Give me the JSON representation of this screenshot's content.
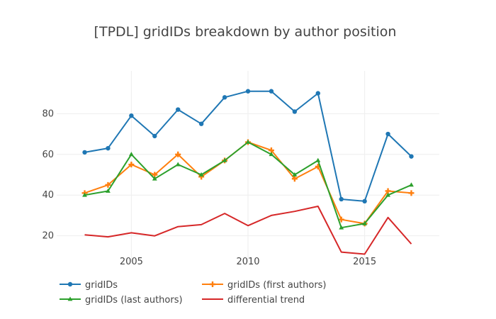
{
  "chart_data": {
    "type": "line",
    "title": "[TPDL] gridIDs breakdown by author position",
    "x": [
      2003,
      2004,
      2005,
      2006,
      2007,
      2008,
      2009,
      2010,
      2011,
      2012,
      2013,
      2014,
      2015,
      2016,
      2017
    ],
    "xticks": [
      2005,
      2010,
      2015
    ],
    "yticks": [
      20,
      40,
      60,
      80
    ],
    "xlim": [
      2001.8,
      2018.2
    ],
    "ylim": [
      7,
      101
    ],
    "grid": true,
    "legend_position": "bottom-left",
    "series": [
      {
        "name": "gridIDs",
        "color": "#1f77b4",
        "marker": "circle",
        "values": [
          61,
          63,
          79,
          69,
          82,
          75,
          88,
          91,
          91,
          81,
          90,
          38,
          37,
          70,
          59
        ]
      },
      {
        "name": "gridIDs (first authors)",
        "color": "#ff7f0e",
        "marker": "cross",
        "values": [
          41,
          45,
          55,
          50,
          60,
          49,
          57,
          66,
          62,
          48,
          54,
          28,
          26,
          42,
          41
        ]
      },
      {
        "name": "gridIDs (last authors)",
        "color": "#2ca02c",
        "marker": "triangle-up",
        "values": [
          40,
          42,
          60,
          48,
          55,
          50,
          57,
          66,
          60,
          50,
          57,
          24,
          26,
          40,
          45
        ]
      },
      {
        "name": "differential trend",
        "color": "#d62728",
        "marker": "none",
        "values": [
          20.5,
          19.5,
          21.5,
          20,
          24.5,
          25.5,
          31,
          25,
          30,
          32,
          34.5,
          12,
          11,
          29,
          16
        ]
      }
    ]
  }
}
